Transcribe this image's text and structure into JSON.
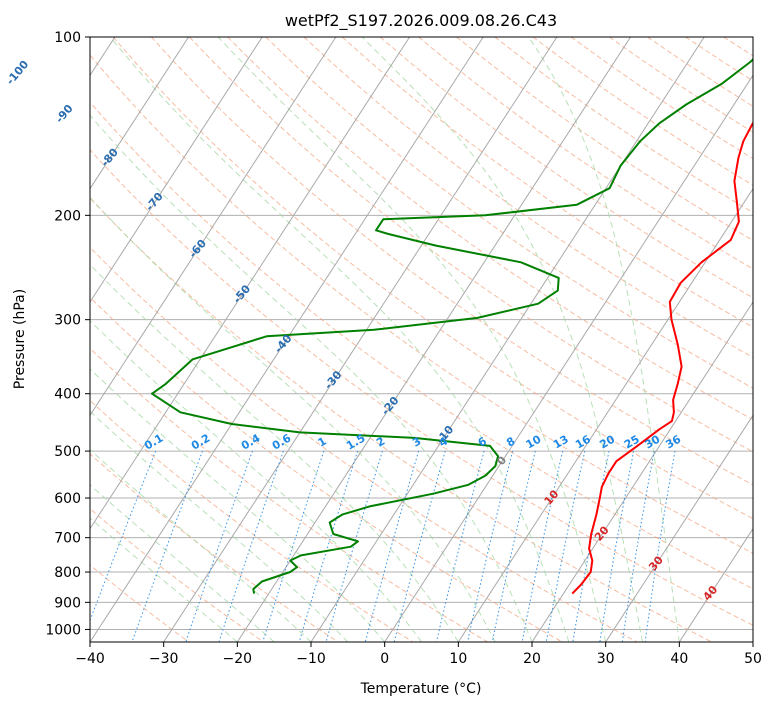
{
  "chart_data": {
    "type": "line",
    "title": "wetPf2_S197.2026.009.08.26.C43",
    "xlabel": "Temperature (°C)",
    "ylabel": "Pressure (hPa)",
    "xlim": [
      -40,
      50
    ],
    "ylim": [
      1050,
      100
    ],
    "y_scale": "log",
    "grid": true,
    "x_ticks": [
      -40,
      -30,
      -20,
      -10,
      0,
      10,
      20,
      30,
      40,
      50
    ],
    "y_ticks": [
      100,
      200,
      300,
      400,
      500,
      600,
      700,
      800,
      900,
      1000
    ],
    "skew": true,
    "background_lines": {
      "isotherms": {
        "color": "#a9a9a9"
      },
      "dry_adiabats": {
        "color": "#f4a582"
      },
      "moist_adiabats": {
        "color": "#a6d8a6"
      },
      "mixing_ratios": {
        "color": "#1e88e5"
      }
    },
    "isotherm_labels": [
      {
        "t": -100,
        "p": 115,
        "text": "-100",
        "color": "#2a6db0"
      },
      {
        "t": -90,
        "p": 135,
        "text": "-90",
        "color": "#2a6db0"
      },
      {
        "t": -80,
        "p": 160,
        "text": "-80",
        "color": "#2a6db0"
      },
      {
        "t": -70,
        "p": 190,
        "text": "-70",
        "color": "#2a6db0"
      },
      {
        "t": -60,
        "p": 228,
        "text": "-60",
        "color": "#2a6db0"
      },
      {
        "t": -50,
        "p": 272,
        "text": "-50",
        "color": "#2a6db0"
      },
      {
        "t": -40,
        "p": 330,
        "text": "-40",
        "color": "#2a6db0"
      },
      {
        "t": -30,
        "p": 380,
        "text": "-30",
        "color": "#2a6db0"
      },
      {
        "t": -20,
        "p": 420,
        "text": "-20",
        "color": "#2a6db0"
      },
      {
        "t": -10,
        "p": 470,
        "text": "-10",
        "color": "#2a6db0"
      },
      {
        "t": 0,
        "p": 520,
        "text": "0",
        "color": "#808080"
      },
      {
        "t": 10,
        "p": 600,
        "text": "10",
        "color": "#d62728"
      },
      {
        "t": 20,
        "p": 690,
        "text": "20",
        "color": "#d62728"
      },
      {
        "t": 30,
        "p": 775,
        "text": "30",
        "color": "#d62728"
      },
      {
        "t": 40,
        "p": 870,
        "text": "40",
        "color": "#d62728"
      }
    ],
    "mixing_ratio_labels": [
      "0.1",
      "0.2",
      "0.4",
      "0.6",
      "1",
      "1.5",
      "2",
      "3",
      "4",
      "6",
      "8",
      "10",
      "13",
      "16",
      "20",
      "25",
      "30",
      "36"
    ],
    "series": [
      {
        "role": "temperature",
        "color": "#ff0000",
        "points": [
          [
            6.5,
            100
          ],
          [
            6.7,
            110
          ],
          [
            5.8,
            120
          ],
          [
            4.5,
            130
          ],
          [
            4.2,
            140
          ],
          [
            4.5,
            150
          ],
          [
            5.3,
            160
          ],
          [
            6.8,
            175
          ],
          [
            9.0,
            190
          ],
          [
            11.0,
            205
          ],
          [
            11.5,
            220
          ],
          [
            9.5,
            240
          ],
          [
            8.5,
            260
          ],
          [
            8.7,
            280
          ],
          [
            10.5,
            300
          ],
          [
            13.5,
            330
          ],
          [
            16.0,
            360
          ],
          [
            17.0,
            385
          ],
          [
            17.8,
            410
          ],
          [
            19.0,
            430
          ],
          [
            19.5,
            445
          ],
          [
            18.5,
            460
          ],
          [
            17.5,
            480
          ],
          [
            16.5,
            500
          ],
          [
            15.5,
            520
          ],
          [
            15.5,
            545
          ],
          [
            15.8,
            575
          ],
          [
            16.5,
            600
          ],
          [
            17.5,
            640
          ],
          [
            18.5,
            690
          ],
          [
            19.5,
            730
          ],
          [
            21.0,
            765
          ],
          [
            21.8,
            800
          ],
          [
            21.6,
            840
          ],
          [
            21.2,
            870
          ]
        ]
      },
      {
        "role": "dewpoint",
        "color": "#008000",
        "points": [
          [
            -0.5,
            100
          ],
          [
            -1.5,
            110
          ],
          [
            -3.5,
            120
          ],
          [
            -6.5,
            130
          ],
          [
            -8.5,
            140
          ],
          [
            -9.5,
            150
          ],
          [
            -10.0,
            165
          ],
          [
            -9.5,
            180
          ],
          [
            -12.5,
            192
          ],
          [
            -24.0,
            200
          ],
          [
            -37.5,
            203
          ],
          [
            -37.5,
            212
          ],
          [
            -35.5,
            215
          ],
          [
            -28.0,
            225
          ],
          [
            -15.0,
            240
          ],
          [
            -8.5,
            255
          ],
          [
            -7.5,
            268
          ],
          [
            -9.0,
            282
          ],
          [
            -16.0,
            298
          ],
          [
            -29.0,
            312
          ],
          [
            -43.0,
            320
          ],
          [
            -51.0,
            350
          ],
          [
            -52.5,
            385
          ],
          [
            -53.5,
            400
          ],
          [
            -48.0,
            430
          ],
          [
            -40.0,
            450
          ],
          [
            -30.0,
            465
          ],
          [
            -14.0,
            475
          ],
          [
            -3.0,
            490
          ],
          [
            -1.0,
            510
          ],
          [
            -0.5,
            530
          ],
          [
            -1.0,
            550
          ],
          [
            -2.5,
            570
          ],
          [
            -6.5,
            590
          ],
          [
            -14.0,
            620
          ],
          [
            -17.0,
            640
          ],
          [
            -18.0,
            660
          ],
          [
            -16.5,
            690
          ],
          [
            -12.5,
            710
          ],
          [
            -13.0,
            725
          ],
          [
            -19.0,
            750
          ],
          [
            -20.0,
            765
          ],
          [
            -18.5,
            785
          ],
          [
            -19.0,
            800
          ],
          [
            -22.0,
            830
          ],
          [
            -22.5,
            855
          ],
          [
            -22.0,
            870
          ]
        ]
      }
    ]
  }
}
